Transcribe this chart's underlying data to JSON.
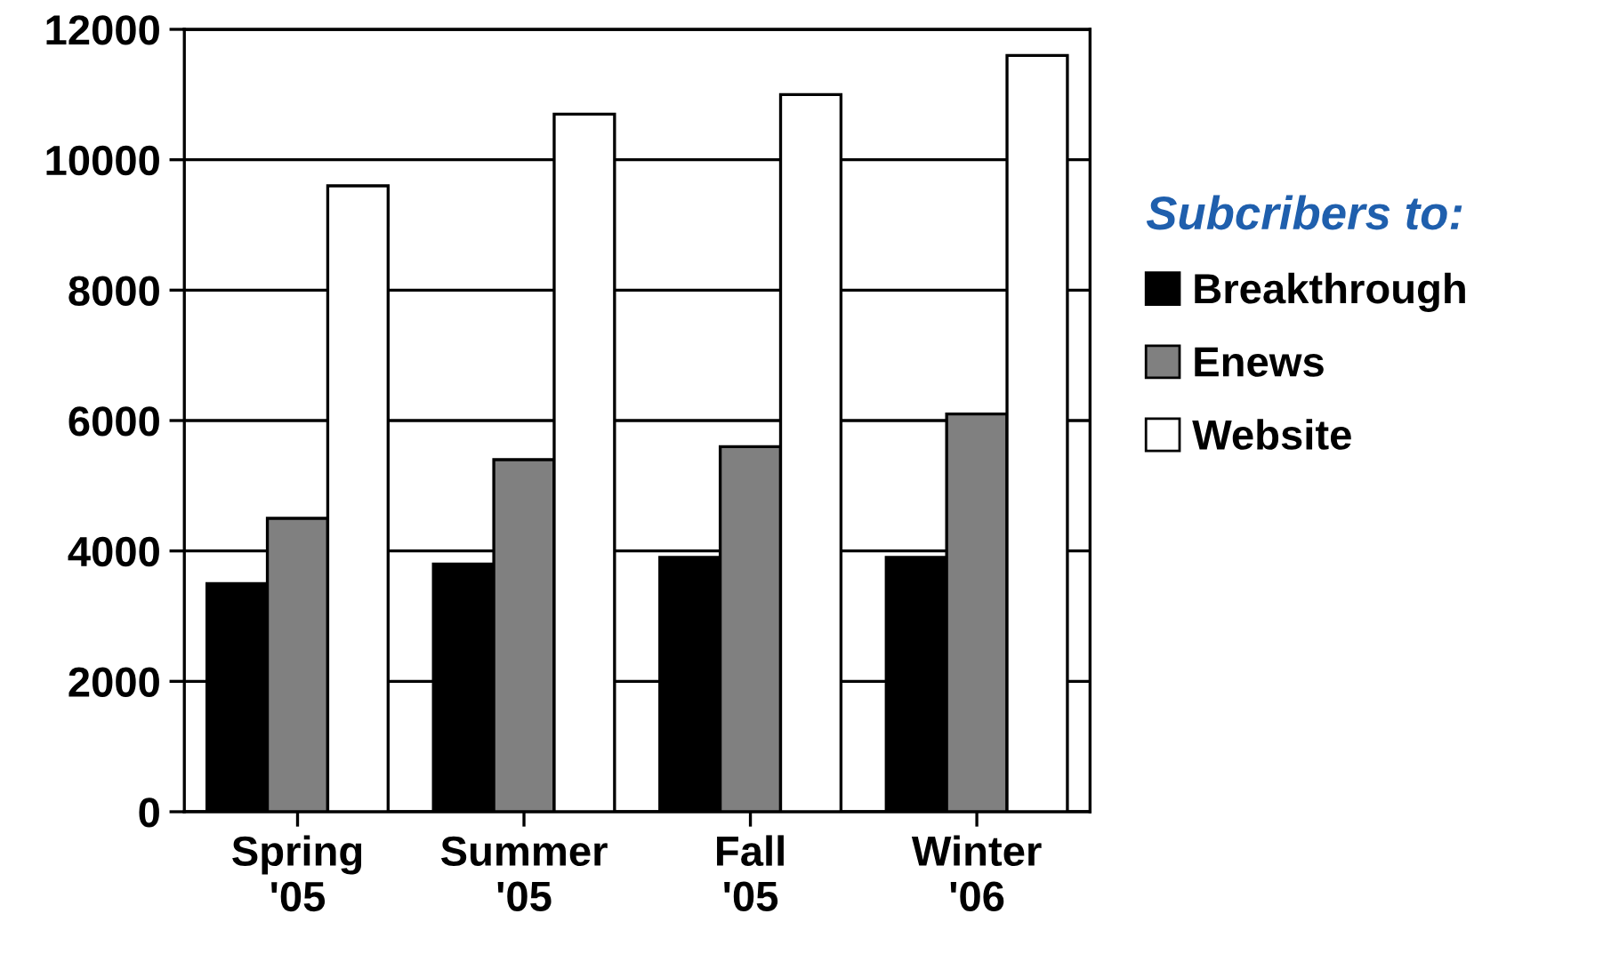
{
  "chart_data": {
    "type": "bar",
    "categories": [
      "Spring\n'05",
      "Summer\n'05",
      "Fall\n'05",
      "Winter\n'06"
    ],
    "legend_title": "Subcribers to:",
    "series": [
      {
        "name": "Breakthrough",
        "color": "#000000",
        "values": [
          3500,
          3800,
          3900,
          3900
        ]
      },
      {
        "name": "Enews",
        "color": "#808080",
        "values": [
          4500,
          5400,
          5600,
          6100
        ]
      },
      {
        "name": "Website",
        "color": "#ffffff",
        "values": [
          9600,
          10700,
          11000,
          11600
        ]
      }
    ],
    "ylim": [
      0,
      12000
    ],
    "yticks": [
      0,
      2000,
      4000,
      6000,
      8000,
      10000,
      12000
    ],
    "grid": "y",
    "legend": "right"
  }
}
